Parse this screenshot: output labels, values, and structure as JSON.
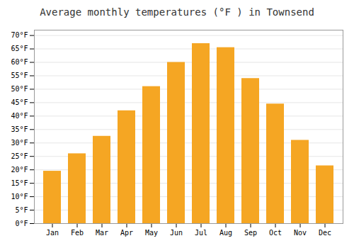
{
  "chart_data": {
    "type": "bar",
    "title": "Average monthly temperatures (°F ) in Townsend",
    "categories": [
      "Jan",
      "Feb",
      "Mar",
      "Apr",
      "May",
      "Jun",
      "Jul",
      "Aug",
      "Sep",
      "Oct",
      "Nov",
      "Dec"
    ],
    "values": [
      19.5,
      26,
      32.5,
      42,
      51,
      60,
      67,
      65.5,
      54,
      44.5,
      31,
      21.5
    ],
    "color": "#F5A623",
    "ylim": [
      0,
      72
    ],
    "yticks": [
      {
        "value": 0,
        "label": "0°F"
      },
      {
        "value": 5,
        "label": "5°F"
      },
      {
        "value": 10,
        "label": "10°F"
      },
      {
        "value": 15,
        "label": "15°F"
      },
      {
        "value": 20,
        "label": "20°F"
      },
      {
        "value": 25,
        "label": "25°F"
      },
      {
        "value": 30,
        "label": "30°F"
      },
      {
        "value": 35,
        "label": "35°F"
      },
      {
        "value": 40,
        "label": "40°F"
      },
      {
        "value": 45,
        "label": "45°F"
      },
      {
        "value": 50,
        "label": "50°F"
      },
      {
        "value": 55,
        "label": "55°F"
      },
      {
        "value": 60,
        "label": "60°F"
      },
      {
        "value": 65,
        "label": "65°F"
      },
      {
        "value": 70,
        "label": "70°F"
      }
    ],
    "grid": true
  }
}
